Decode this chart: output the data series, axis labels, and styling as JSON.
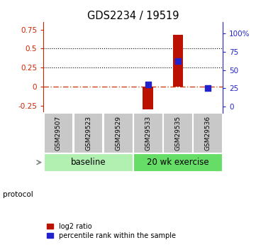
{
  "title": "GDS2234 / 19519",
  "samples": [
    "GSM29507",
    "GSM29523",
    "GSM29529",
    "GSM29533",
    "GSM29535",
    "GSM29536"
  ],
  "log2_ratio": [
    0.0,
    0.0,
    0.0,
    -0.3,
    0.68,
    0.0
  ],
  "percentile_rank": [
    null,
    null,
    null,
    30,
    62,
    25
  ],
  "protocol_groups": [
    {
      "label": "baseline",
      "start": 0,
      "end": 3,
      "color": "#b2f0b2"
    },
    {
      "label": "20 wk exercise",
      "start": 3,
      "end": 6,
      "color": "#66dd66"
    }
  ],
  "bar_color": "#bb1100",
  "dot_color": "#2222cc",
  "ylim_left": [
    -0.35,
    0.85
  ],
  "ylim_right": [
    -9.09,
    115.91
  ],
  "yticks_left": [
    -0.25,
    0.0,
    0.25,
    0.5,
    0.75
  ],
  "yticks_right": [
    0,
    25,
    50,
    75,
    100
  ],
  "ytick_labels_left": [
    "-0.25",
    "0",
    "0.25",
    "0.5",
    "0.75"
  ],
  "ytick_labels_right": [
    "0",
    "25",
    "50",
    "75",
    "100%"
  ],
  "hlines": [
    0.5,
    0.25
  ],
  "zero_line_color": "#cc3300",
  "left_axis_color": "#cc2200",
  "right_axis_color": "#2222cc",
  "bar_width": 0.35,
  "dot_size": 30,
  "sample_box_color": "#c8c8c8",
  "figsize": [
    3.61,
    3.45
  ],
  "dpi": 100
}
